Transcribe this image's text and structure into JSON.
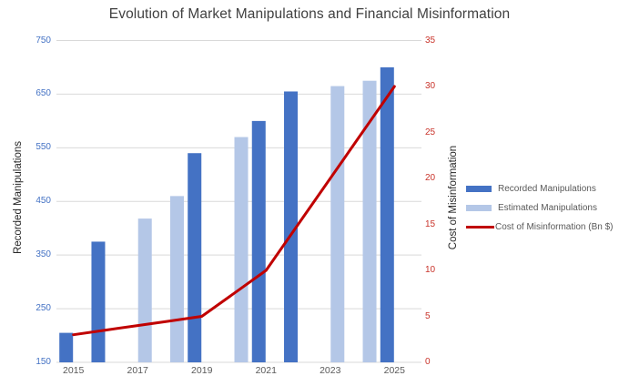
{
  "title": "Evolution of Market Manipulations and Financial Misinformation",
  "chart_data": {
    "type": "combo: clustered bars + line, dual y-axes",
    "title": "Evolution of Market Manipulations and Financial Misinformation",
    "title_color": "#404040",
    "background": "#FFFFFF",
    "categories": [
      "2015",
      "2016",
      "2017",
      "2018",
      "2019",
      "2020",
      "2021",
      "2022",
      "2023",
      "2024",
      "2025"
    ],
    "x_axis": {
      "shown_tick_labels": [
        "2015",
        "2017",
        "2019",
        "2021",
        "2023",
        "2025"
      ],
      "label_color": "#595959"
    },
    "left_axis": {
      "label": "Recorded Manipulations",
      "min": 150,
      "max": 750,
      "tick_step": 100,
      "ticks": [
        750,
        650,
        550,
        450,
        350,
        250,
        150
      ],
      "tick_color": "#4472C4"
    },
    "right_axis": {
      "label": "Cost of Misinformation",
      "min": 0,
      "max": 35,
      "tick_step": 5,
      "ticks": [
        35,
        30,
        25,
        20,
        15,
        10,
        5,
        0
      ],
      "tick_color": "#C9342B"
    },
    "series": [
      {
        "name": "Recorded Manipulations",
        "type": "bar",
        "axis": "left",
        "color": "#4472C4",
        "values": [
          205,
          375,
          null,
          null,
          540,
          null,
          600,
          655,
          null,
          null,
          700
        ]
      },
      {
        "name": "Estimated Manipulations",
        "type": "bar",
        "axis": "left",
        "color": "#B4C7E7",
        "values": [
          null,
          null,
          418,
          460,
          null,
          570,
          null,
          null,
          665,
          675,
          null
        ]
      },
      {
        "name": "Cost of Misinformation (Bn $)",
        "type": "line",
        "axis": "right",
        "color": "#C00000",
        "values": [
          3,
          3.5,
          4,
          4.5,
          5,
          7.5,
          10,
          15,
          20,
          25,
          30
        ]
      }
    ],
    "legend": {
      "position": "right-middle",
      "entries": [
        "Recorded Manipulations",
        "Estimated Manipulations",
        "Cost of Misinformation (Bn $)"
      ]
    },
    "grid": {
      "horizontal": true,
      "color": "#D9D9D9"
    }
  }
}
